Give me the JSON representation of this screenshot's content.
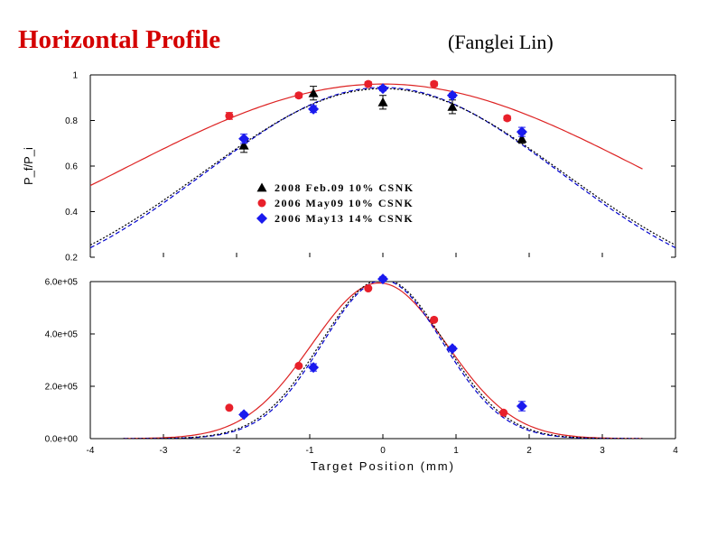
{
  "slide": {
    "title": "Horizontal Profile",
    "author": "(Fanglei Lin)"
  },
  "colors": {
    "feb09": "#000000",
    "may09": "#e8202a",
    "may13": "#1a1aee",
    "fit_red": "#dd2222",
    "fit_blue": "#0000cc",
    "fit_black": "#000000"
  },
  "chart_data": [
    {
      "type": "scatter",
      "panel": "top",
      "xlabel": "",
      "ylabel": "P_f/P_i",
      "xlim": [
        -4,
        4
      ],
      "ylim": [
        0.2,
        1.0
      ],
      "yticks": [
        0.2,
        0.4,
        0.6,
        0.8,
        1
      ],
      "ytick_labels": [
        "0.2",
        "0.4",
        "0.6",
        "0.8",
        "1"
      ],
      "legend_position": "center-left",
      "series": [
        {
          "name": "2008 Feb.09 10% CSNK",
          "marker": "triangle",
          "color_key": "feb09",
          "x": [
            -1.9,
            -0.95,
            0.0,
            0.95,
            1.9
          ],
          "y": [
            0.69,
            0.92,
            0.88,
            0.86,
            0.72
          ],
          "yerr": [
            0.03,
            0.03,
            0.03,
            0.03,
            0.02
          ]
        },
        {
          "name": "2006 May09 10% CSNK",
          "marker": "circle",
          "color_key": "may09",
          "x": [
            -2.1,
            -1.15,
            -0.2,
            0.7,
            1.7
          ],
          "y": [
            0.82,
            0.91,
            0.96,
            0.96,
            0.81
          ],
          "yerr": [
            0.015,
            0.01,
            0.01,
            0.01,
            0.01
          ]
        },
        {
          "name": "2006 May13 14% CSNK",
          "marker": "diamond",
          "color_key": "may13",
          "x": [
            -1.9,
            -0.95,
            0.0,
            0.95,
            1.9
          ],
          "y": [
            0.72,
            0.85,
            0.94,
            0.91,
            0.75
          ],
          "yerr": [
            0.02,
            0.015,
            0.01,
            0.01,
            0.02
          ]
        }
      ],
      "fits": [
        {
          "color_key": "fit_red",
          "dash": "",
          "amplitude": 0.96,
          "center": 0.0,
          "sigma": 3.58,
          "xrange": [
            -4,
            3.55
          ]
        },
        {
          "color_key": "fit_blue",
          "dash": "5,3",
          "amplitude": 0.945,
          "center": 0.0,
          "sigma": 2.42,
          "xrange": [
            -4,
            4
          ]
        },
        {
          "color_key": "fit_black",
          "dash": "2,2",
          "amplitude": 0.94,
          "center": 0.0,
          "sigma": 2.47,
          "xrange": [
            -4,
            4
          ]
        }
      ]
    },
    {
      "type": "scatter",
      "panel": "bottom",
      "xlabel": "Target Position (mm)",
      "ylabel": "",
      "xlim": [
        -4,
        4
      ],
      "ylim": [
        0,
        600000
      ],
      "xticks": [
        -4,
        -3,
        -2,
        -1,
        0,
        1,
        2,
        3,
        4
      ],
      "xtick_labels": [
        "-4",
        "-3",
        "-2",
        "-1",
        "0",
        "1",
        "2",
        "3",
        "4"
      ],
      "yticks": [
        0,
        200000,
        400000,
        600000
      ],
      "ytick_labels": [
        "0.0e+00",
        "2.0e+05",
        "4.0e+05",
        "6.0e+05"
      ],
      "series": [
        {
          "name": "2006 May09 10% CSNK",
          "marker": "circle",
          "color_key": "may09",
          "x": [
            -2.1,
            -1.15,
            -0.2,
            0.7,
            1.65
          ],
          "y": [
            118000,
            278000,
            574000,
            454000,
            99000
          ],
          "yerr": [
            5000,
            5000,
            5000,
            5000,
            5000
          ]
        },
        {
          "name": "2006 May13 14% CSNK",
          "marker": "diamond",
          "color_key": "may13",
          "x": [
            -1.9,
            -0.95,
            0.0,
            0.95,
            1.9
          ],
          "y": [
            92000,
            272000,
            610000,
            344000,
            124000
          ],
          "yerr": [
            8000,
            14000,
            8000,
            8000,
            18000
          ]
        }
      ],
      "fits": [
        {
          "color_key": "fit_red",
          "dash": "",
          "amplitude": 595000,
          "center": -0.05,
          "sigma": 0.92,
          "xrange": [
            -3.55,
            3.55
          ]
        },
        {
          "color_key": "fit_blue",
          "dash": "5,3",
          "amplitude": 605000,
          "center": 0.0,
          "sigma": 0.82,
          "xrange": [
            -3.55,
            3.55
          ]
        },
        {
          "color_key": "fit_black",
          "dash": "2,2",
          "amplitude": 610000,
          "center": 0.0,
          "sigma": 0.84,
          "xrange": [
            -3.55,
            3.55
          ]
        }
      ]
    }
  ]
}
